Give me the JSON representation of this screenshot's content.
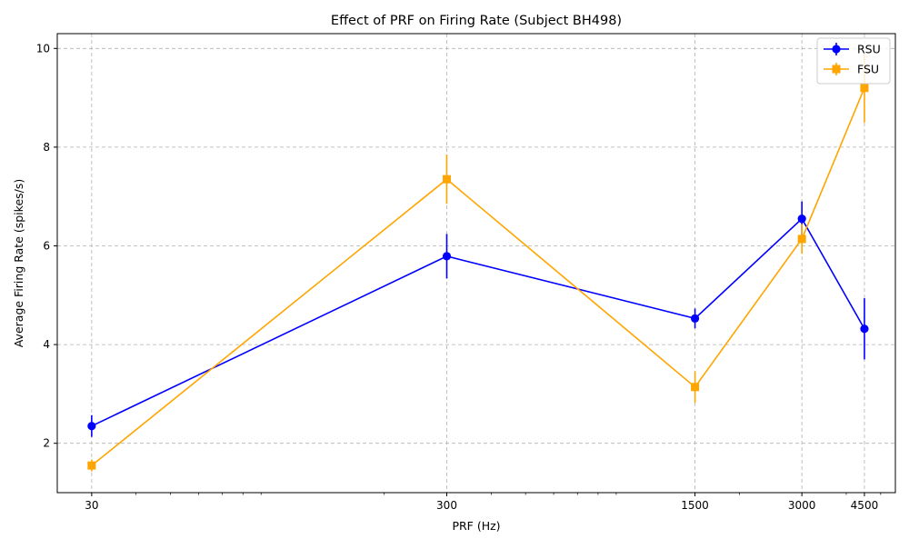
{
  "chart_data": {
    "type": "line",
    "title": "Effect of PRF on Firing Rate (Subject BH498)",
    "xlabel": "PRF (Hz)",
    "ylabel": "Average Firing Rate (spikes/s)",
    "x_scale": "log",
    "xlim": [
      24,
      5500
    ],
    "ylim": [
      1.0,
      10.3
    ],
    "x": [
      30,
      300,
      1500,
      3000,
      4500
    ],
    "x_tick_labels": [
      "30",
      "300",
      "1500",
      "3000",
      "4500"
    ],
    "y_ticks": [
      2,
      4,
      6,
      8,
      10
    ],
    "y_tick_labels": [
      "2",
      "4",
      "6",
      "8",
      "10"
    ],
    "grid": true,
    "legend_position": "top-right",
    "series": [
      {
        "name": "RSU",
        "color": "#0000ff",
        "marker": "circle",
        "values": [
          2.35,
          5.79,
          4.53,
          6.55,
          4.32
        ],
        "errors": [
          0.22,
          0.45,
          0.2,
          0.35,
          0.62
        ]
      },
      {
        "name": "FSU",
        "color": "#ffa500",
        "marker": "square",
        "values": [
          1.55,
          7.35,
          3.14,
          6.14,
          9.2
        ],
        "errors": [
          0.12,
          0.5,
          0.32,
          0.3,
          0.7
        ]
      }
    ]
  }
}
